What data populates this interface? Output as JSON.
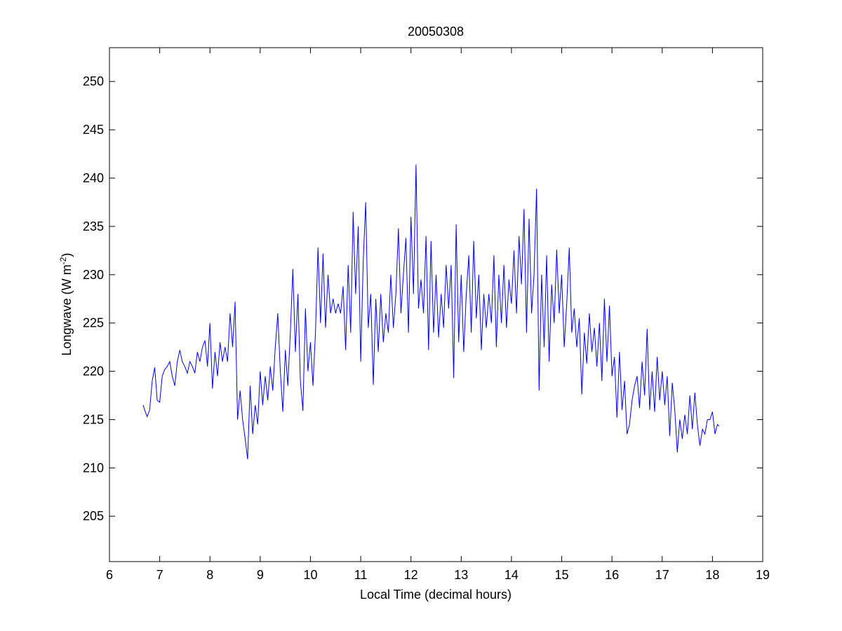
{
  "chart_data": {
    "type": "line",
    "title": "20050308",
    "xlabel": "Local Time (decimal hours)",
    "ylabel_main": "Longwave (W m",
    "ylabel_sup": "-2",
    "ylabel_end": ")",
    "xlim": [
      6,
      19
    ],
    "ylim": [
      200.3,
      253.5
    ],
    "xticks": [
      6,
      7,
      8,
      9,
      10,
      11,
      12,
      13,
      14,
      15,
      16,
      17,
      18,
      19
    ],
    "yticks": [
      205,
      210,
      215,
      220,
      225,
      230,
      235,
      240,
      245,
      250
    ],
    "grid": false,
    "line_color": "#0000ff",
    "series": [
      {
        "name": "Longwave",
        "x": [
          6.67,
          6.7,
          6.75,
          6.8,
          6.85,
          6.9,
          6.95,
          7.0,
          7.05,
          7.1,
          7.15,
          7.2,
          7.25,
          7.3,
          7.35,
          7.4,
          7.45,
          7.5,
          7.55,
          7.6,
          7.65,
          7.7,
          7.75,
          7.8,
          7.85,
          7.9,
          7.95,
          8.0,
          8.05,
          8.1,
          8.15,
          8.2,
          8.25,
          8.3,
          8.35,
          8.4,
          8.45,
          8.5,
          8.55,
          8.6,
          8.65,
          8.7,
          8.75,
          8.8,
          8.85,
          8.9,
          8.95,
          9.0,
          9.05,
          9.1,
          9.15,
          9.2,
          9.25,
          9.3,
          9.35,
          9.4,
          9.45,
          9.5,
          9.55,
          9.6,
          9.65,
          9.7,
          9.75,
          9.8,
          9.85,
          9.9,
          9.95,
          10.0,
          10.05,
          10.1,
          10.15,
          10.2,
          10.25,
          10.3,
          10.35,
          10.4,
          10.45,
          10.5,
          10.55,
          10.6,
          10.65,
          10.7,
          10.75,
          10.8,
          10.85,
          10.9,
          10.95,
          11.0,
          11.05,
          11.1,
          11.15,
          11.2,
          11.25,
          11.3,
          11.35,
          11.4,
          11.45,
          11.5,
          11.55,
          11.6,
          11.65,
          11.7,
          11.75,
          11.8,
          11.85,
          11.9,
          11.95,
          12.0,
          12.05,
          12.1,
          12.15,
          12.2,
          12.25,
          12.3,
          12.35,
          12.4,
          12.45,
          12.5,
          12.55,
          12.6,
          12.65,
          12.7,
          12.75,
          12.8,
          12.85,
          12.9,
          12.95,
          13.0,
          13.05,
          13.1,
          13.15,
          13.2,
          13.25,
          13.3,
          13.35,
          13.4,
          13.45,
          13.5,
          13.55,
          13.6,
          13.65,
          13.7,
          13.75,
          13.8,
          13.85,
          13.9,
          13.95,
          14.0,
          14.05,
          14.1,
          14.15,
          14.2,
          14.25,
          14.3,
          14.35,
          14.4,
          14.45,
          14.5,
          14.55,
          14.6,
          14.65,
          14.7,
          14.75,
          14.8,
          14.85,
          14.9,
          14.95,
          15.0,
          15.05,
          15.1,
          15.15,
          15.2,
          15.25,
          15.3,
          15.35,
          15.4,
          15.45,
          15.5,
          15.55,
          15.6,
          15.65,
          15.7,
          15.75,
          15.8,
          15.85,
          15.9,
          15.95,
          16.0,
          16.05,
          16.1,
          16.15,
          16.2,
          16.25,
          16.3,
          16.35,
          16.4,
          16.45,
          16.5,
          16.55,
          16.6,
          16.65,
          16.7,
          16.75,
          16.8,
          16.85,
          16.9,
          16.95,
          17.0,
          17.05,
          17.1,
          17.15,
          17.2,
          17.25,
          17.3,
          17.35,
          17.4,
          17.45,
          17.5,
          17.55,
          17.6,
          17.65,
          17.7,
          17.75,
          17.8,
          17.85,
          17.9,
          17.95,
          18.0,
          18.05,
          18.1,
          18.13
        ],
        "y": [
          216.5,
          216,
          215.3,
          216,
          219,
          220.4,
          217,
          216.8,
          219.5,
          220.2,
          220.5,
          221,
          219.5,
          218.5,
          221,
          222.2,
          221,
          220.5,
          219.8,
          221,
          220.5,
          219.8,
          222,
          221,
          222.5,
          223.2,
          220.5,
          225,
          218.2,
          222,
          219.5,
          223,
          221,
          222.5,
          221,
          226,
          222.5,
          227.2,
          215,
          218,
          215,
          213,
          210.9,
          218.5,
          213.5,
          216.5,
          214.5,
          220,
          216.5,
          219.5,
          217,
          220.5,
          218,
          222.5,
          226,
          220,
          215.8,
          222.2,
          218.5,
          224,
          230.6,
          222,
          228,
          219,
          215.9,
          226.5,
          220,
          223,
          218.5,
          224,
          232.8,
          225,
          232.2,
          224.5,
          230,
          226,
          227.5,
          226,
          227,
          226,
          228.8,
          222.2,
          231,
          224,
          236.5,
          228,
          235,
          221,
          231.5,
          237.5,
          224.5,
          228,
          218.6,
          227.5,
          222,
          228,
          223,
          226,
          224,
          230,
          224.5,
          228,
          234.8,
          226,
          230,
          233.8,
          224,
          236,
          228,
          241.4,
          226.5,
          229.5,
          226,
          234,
          222.2,
          233.5,
          224,
          230,
          223.5,
          228,
          224.5,
          231,
          226.5,
          231,
          219.3,
          235.2,
          223,
          230,
          222,
          228,
          232,
          224,
          233.5,
          225.5,
          230,
          222.2,
          228,
          224.5,
          228,
          225,
          232,
          222.5,
          230,
          225,
          231,
          224.5,
          229.5,
          227,
          232.5,
          226,
          234,
          229,
          236.8,
          224,
          235.8,
          226,
          230,
          238.9,
          218,
          230,
          222.5,
          232,
          221,
          229,
          225,
          232.6,
          226,
          230,
          222.5,
          227,
          232.8,
          224,
          226.5,
          222.5,
          225.5,
          217.6,
          224,
          220.8,
          226,
          222,
          224.5,
          220.5,
          225,
          219,
          227.5,
          221,
          226.8,
          219.5,
          221.5,
          215.2,
          222,
          216,
          219,
          213.5,
          214.5,
          217,
          218.5,
          219.5,
          216.2,
          221,
          217.5,
          224.4,
          216,
          220,
          215.8,
          221.5,
          217,
          220,
          216.5,
          219.5,
          213.3,
          218.8,
          216,
          211.6,
          215,
          213,
          215.5,
          213.5,
          217.5,
          214,
          217.8,
          214.5,
          212.3,
          214,
          213.5,
          215,
          215,
          215.8,
          213.5,
          214.5,
          214.3
        ]
      }
    ]
  }
}
